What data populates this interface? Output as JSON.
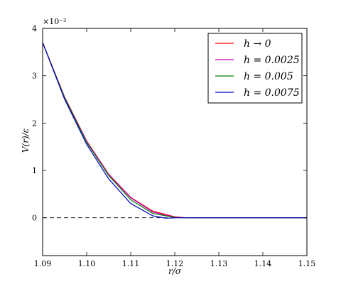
{
  "chart_data": {
    "type": "line",
    "title": "",
    "xlabel": "r/σ",
    "ylabel": "V(r)/ε",
    "y_scale_text": "×10⁻²",
    "xlim": [
      1.09,
      1.15
    ],
    "ylim": [
      -0.8,
      4.0
    ],
    "x_ticks": [
      1.09,
      1.1,
      1.11,
      1.12,
      1.13,
      1.14,
      1.15
    ],
    "x_tick_labels": [
      "1.09",
      "1.10",
      "1.11",
      "1.12",
      "1.13",
      "1.14",
      "1.15"
    ],
    "y_ticks": [
      0,
      1,
      2,
      3,
      4
    ],
    "y_tick_labels": [
      "0",
      "1",
      "2",
      "3",
      "4"
    ],
    "grid": false,
    "legend_position": "top-right",
    "reference_line": {
      "y": 0,
      "style": "dashed",
      "color": "#000000"
    },
    "series": [
      {
        "name": "h → 0",
        "color": "#ff0000",
        "x": [
          1.09,
          1.095,
          1.1,
          1.105,
          1.11,
          1.115,
          1.12,
          1.1225,
          1.13,
          1.14,
          1.15
        ],
        "y": [
          3.7,
          2.55,
          1.62,
          0.92,
          0.43,
          0.14,
          0.02,
          0.0,
          0.0,
          0.0,
          0.0
        ]
      },
      {
        "name": "h = 0.0025",
        "color": "#bf00bf",
        "x": [
          1.09,
          1.095,
          1.1,
          1.105,
          1.11,
          1.115,
          1.12,
          1.1223,
          1.13,
          1.14,
          1.15
        ],
        "y": [
          3.7,
          2.54,
          1.61,
          0.91,
          0.42,
          0.12,
          0.01,
          0.0,
          0.0,
          0.0,
          0.0
        ]
      },
      {
        "name": "h = 0.005",
        "color": "#008000",
        "x": [
          1.09,
          1.095,
          1.1,
          1.105,
          1.11,
          1.115,
          1.12,
          1.1218,
          1.13,
          1.14,
          1.15
        ],
        "y": [
          3.7,
          2.53,
          1.59,
          0.89,
          0.38,
          0.09,
          0.005,
          0.0,
          0.0,
          0.0,
          0.0
        ]
      },
      {
        "name": "h = 0.0075",
        "color": "#0000bf",
        "x": [
          1.09,
          1.095,
          1.1,
          1.105,
          1.11,
          1.115,
          1.118,
          1.1205,
          1.13,
          1.14,
          1.15
        ],
        "y": [
          3.7,
          2.5,
          1.55,
          0.82,
          0.3,
          0.04,
          -0.01,
          0.0,
          0.0,
          0.0,
          0.0
        ]
      }
    ]
  }
}
